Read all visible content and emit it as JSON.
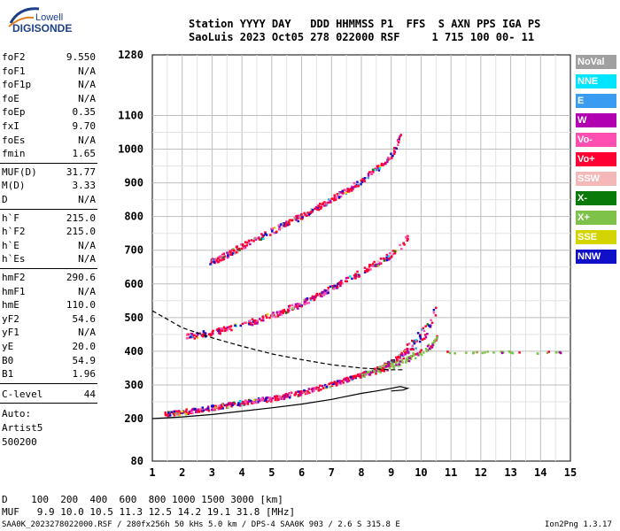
{
  "logo": {
    "top": "Lowell",
    "main": "DIGISONDE"
  },
  "header": {
    "line1": "Station YYYY DAY   DDD HHMMSS P1  FFS  S AXN PPS IGA PS",
    "line2": "SaoLuis 2023 Oct05 278 022000 RSF     1 715 100 00- 11"
  },
  "params": {
    "group1": [
      {
        "label": "foF2",
        "value": "9.550"
      },
      {
        "label": "foF1",
        "value": "N/A"
      },
      {
        "label": "foF1p",
        "value": "N/A"
      },
      {
        "label": "foE",
        "value": "N/A"
      },
      {
        "label": "foEp",
        "value": "0.35"
      },
      {
        "label": "fxI",
        "value": "9.70"
      },
      {
        "label": "foEs",
        "value": "N/A"
      },
      {
        "label": "fmin",
        "value": "1.65"
      }
    ],
    "group2": [
      {
        "label": "MUF(D)",
        "value": "31.77"
      },
      {
        "label": "M(D)",
        "value": "3.33"
      },
      {
        "label": "D",
        "value": "N/A"
      }
    ],
    "group3": [
      {
        "label": "h`F",
        "value": "215.0"
      },
      {
        "label": "h`F2",
        "value": "215.0"
      },
      {
        "label": "h`E",
        "value": "N/A"
      },
      {
        "label": "h`Es",
        "value": "N/A"
      }
    ],
    "group4": [
      {
        "label": "hmF2",
        "value": "290.6"
      },
      {
        "label": "hmF1",
        "value": "N/A"
      },
      {
        "label": "hmE",
        "value": "110.0"
      },
      {
        "label": "yF2",
        "value": "54.6"
      },
      {
        "label": "yF1",
        "value": "N/A"
      },
      {
        "label": "yE",
        "value": "20.0"
      },
      {
        "label": "B0",
        "value": "54.9"
      },
      {
        "label": "B1",
        "value": "1.96"
      }
    ],
    "clevel": {
      "label": "C-level",
      "value": "44"
    },
    "auto": [
      "Auto:",
      "Artist5",
      "500200"
    ]
  },
  "legend": [
    {
      "label": "NoVal",
      "color": "#a0a0a0"
    },
    {
      "label": "NNE",
      "color": "#00e5ff"
    },
    {
      "label": "E",
      "color": "#3a9cf0"
    },
    {
      "label": "W",
      "color": "#b000b0"
    },
    {
      "label": "Vo-",
      "color": "#ff4fb0"
    },
    {
      "label": "Vo+",
      "color": "#ff0033"
    },
    {
      "label": "SSW",
      "color": "#f5b8b8"
    },
    {
      "label": "X-",
      "color": "#0a7a0a"
    },
    {
      "label": "X+",
      "color": "#7fc24a"
    },
    {
      "label": "SSE",
      "color": "#d4d400"
    },
    {
      "label": "NNW",
      "color": "#1010c8"
    }
  ],
  "footer": {
    "line1": "D    100  200  400  600  800 1000 1500 3000 [km]",
    "line2": "MUF   9.9 10.0 10.5 11.3 12.5 14.2 19.1 31.8 [MHz]",
    "line3": "SAA0K_2023278022000.RSF / 280fx256h 50 kHs 5.0 km / DPS-4 SAA0K 903 / 2.6 S 315.8 E",
    "version": "Ion2Png 1.3.17"
  },
  "chart_data": {
    "type": "scatter",
    "title": "",
    "xlabel": "",
    "ylabel": "",
    "xlim": [
      1,
      15
    ],
    "ylim": [
      80,
      1280
    ],
    "x_ticks": [
      1,
      2,
      3,
      4,
      5,
      6,
      7,
      8,
      9,
      10,
      11,
      12,
      13,
      14,
      15
    ],
    "y_ticks": [
      80,
      200,
      300,
      400,
      500,
      600,
      700,
      800,
      900,
      1000,
      1100,
      1280
    ],
    "grid": true,
    "series": [
      {
        "name": "",
        "trace": "O-trace F2 1st hop",
        "color": "#ff0033",
        "x": [
          1.4,
          2,
          3,
          4,
          5,
          6,
          7,
          7.5,
          8,
          8.5,
          9,
          9.3,
          9.6,
          9.9,
          10.1,
          10.3,
          10.5
        ],
        "y": [
          215,
          222,
          235,
          250,
          262,
          280,
          305,
          318,
          332,
          350,
          370,
          390,
          415,
          440,
          460,
          490,
          540
        ]
      },
      {
        "name": "",
        "trace": "O-trace F2 2nd hop",
        "color": "#ff0033",
        "x": [
          2.1,
          3,
          4,
          5,
          6,
          7,
          7.5,
          8,
          8.5,
          9,
          9.3,
          9.55
        ],
        "y": [
          445,
          458,
          480,
          510,
          545,
          590,
          615,
          640,
          665,
          690,
          715,
          745
        ]
      },
      {
        "name": "",
        "trace": "O-trace F2 3rd hop",
        "color": "#ff0033",
        "x": [
          2.9,
          3.5,
          4,
          5,
          6,
          7,
          7.5,
          8,
          8.5,
          9,
          9.3
        ],
        "y": [
          665,
          690,
          715,
          760,
          805,
          855,
          880,
          910,
          945,
          985,
          1045
        ]
      },
      {
        "name": "",
        "trace": "X-trace",
        "color": "#7fc24a",
        "x": [
          8,
          8.5,
          9,
          9.5,
          10,
          10.3,
          10.5
        ],
        "y": [
          330,
          345,
          360,
          380,
          400,
          420,
          440
        ]
      },
      {
        "name": "",
        "trace": "spread above foF2",
        "color": "#7fc24a",
        "x": [
          10.8,
          11,
          11.3,
          11.6,
          12,
          13,
          14,
          14.8
        ],
        "y": [
          400,
          400,
          398,
          400,
          400,
          400,
          398,
          400
        ]
      }
    ],
    "profile_solid": {
      "x": [
        1,
        2,
        3,
        4,
        5,
        6,
        7,
        8,
        8.5,
        9,
        9.3,
        9.55,
        9.4,
        9.0
      ],
      "y": [
        200,
        205,
        212,
        222,
        232,
        243,
        257,
        275,
        282,
        290,
        295,
        290,
        285,
        282
      ]
    },
    "profile_dashed": {
      "x": [
        1,
        1.5,
        2,
        3,
        4,
        5,
        6,
        7,
        8,
        9,
        9.4
      ],
      "y": [
        520,
        495,
        470,
        440,
        415,
        392,
        375,
        360,
        350,
        345,
        345
      ]
    }
  }
}
